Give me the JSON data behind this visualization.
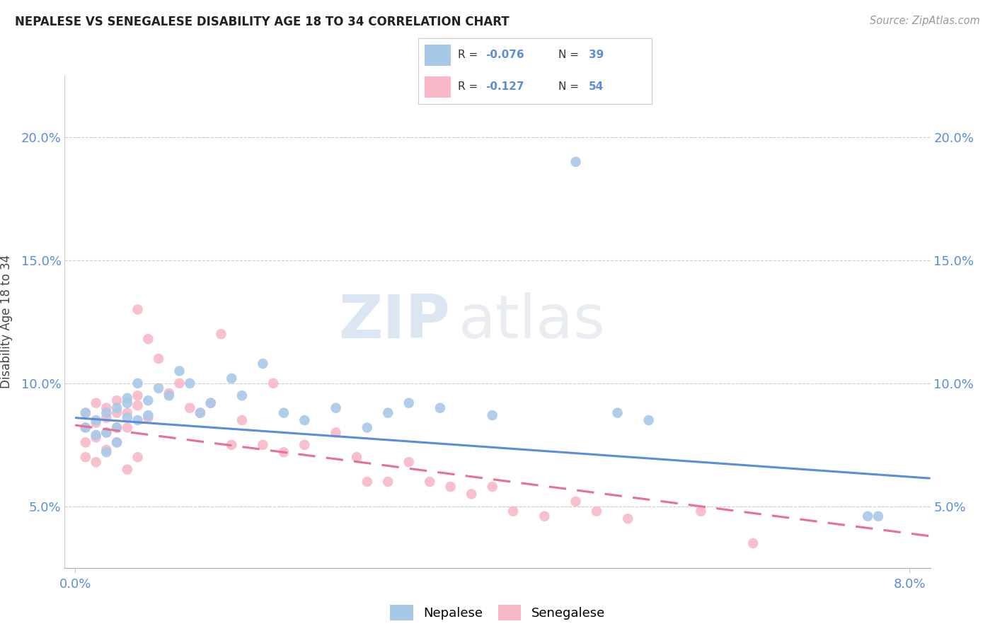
{
  "title": "NEPALESE VS SENEGALESE DISABILITY AGE 18 TO 34 CORRELATION CHART",
  "source": "Source: ZipAtlas.com",
  "ylabel": "Disability Age 18 to 34",
  "y_tick_labels": [
    "5.0%",
    "10.0%",
    "15.0%",
    "20.0%"
  ],
  "y_tick_values": [
    0.05,
    0.1,
    0.15,
    0.2
  ],
  "x_tick_labels": [
    "0.0%",
    "8.0%"
  ],
  "x_tick_values": [
    0.0,
    0.08
  ],
  "xlim": [
    -0.001,
    0.082
  ],
  "ylim": [
    0.025,
    0.225
  ],
  "watermark_zip": "ZIP",
  "watermark_atlas": "atlas",
  "neo_color": "#a8c8e8",
  "sen_color": "#f8b8c8",
  "neo_line_color": "#5b8dd9",
  "sen_line_color": "#e87090",
  "tick_color": "#5b8dd9",
  "neo_x": [
    0.001,
    0.001,
    0.002,
    0.002,
    0.003,
    0.003,
    0.003,
    0.004,
    0.004,
    0.004,
    0.005,
    0.005,
    0.005,
    0.006,
    0.006,
    0.007,
    0.007,
    0.008,
    0.009,
    0.01,
    0.011,
    0.012,
    0.013,
    0.015,
    0.016,
    0.018,
    0.02,
    0.022,
    0.025,
    0.028,
    0.03,
    0.032,
    0.035,
    0.04,
    0.048,
    0.052,
    0.055,
    0.076,
    0.077
  ],
  "neo_y": [
    0.082,
    0.088,
    0.079,
    0.085,
    0.072,
    0.08,
    0.088,
    0.076,
    0.082,
    0.09,
    0.094,
    0.086,
    0.092,
    0.1,
    0.085,
    0.093,
    0.087,
    0.098,
    0.095,
    0.105,
    0.1,
    0.088,
    0.092,
    0.102,
    0.095,
    0.108,
    0.088,
    0.085,
    0.09,
    0.082,
    0.088,
    0.092,
    0.09,
    0.087,
    0.19,
    0.088,
    0.085,
    0.046,
    0.046
  ],
  "sen_x": [
    0.001,
    0.001,
    0.001,
    0.001,
    0.002,
    0.002,
    0.002,
    0.002,
    0.003,
    0.003,
    0.003,
    0.003,
    0.004,
    0.004,
    0.004,
    0.004,
    0.005,
    0.005,
    0.005,
    0.006,
    0.006,
    0.006,
    0.006,
    0.007,
    0.007,
    0.008,
    0.009,
    0.01,
    0.011,
    0.012,
    0.013,
    0.014,
    0.015,
    0.016,
    0.018,
    0.019,
    0.02,
    0.022,
    0.025,
    0.027,
    0.028,
    0.03,
    0.032,
    0.034,
    0.036,
    0.038,
    0.04,
    0.042,
    0.045,
    0.048,
    0.05,
    0.053,
    0.06,
    0.065
  ],
  "sen_y": [
    0.076,
    0.082,
    0.07,
    0.088,
    0.078,
    0.084,
    0.068,
    0.092,
    0.08,
    0.086,
    0.09,
    0.073,
    0.093,
    0.088,
    0.076,
    0.082,
    0.082,
    0.088,
    0.065,
    0.091,
    0.095,
    0.07,
    0.13,
    0.118,
    0.086,
    0.11,
    0.096,
    0.1,
    0.09,
    0.088,
    0.092,
    0.12,
    0.075,
    0.085,
    0.075,
    0.1,
    0.072,
    0.075,
    0.08,
    0.07,
    0.06,
    0.06,
    0.068,
    0.06,
    0.058,
    0.055,
    0.058,
    0.048,
    0.046,
    0.052,
    0.048,
    0.045,
    0.048,
    0.035
  ]
}
